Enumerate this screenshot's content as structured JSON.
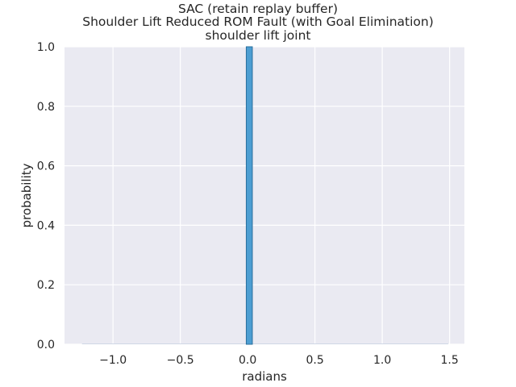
{
  "chart_data": {
    "type": "bar",
    "title_lines": [
      "SAC (retain replay buffer)",
      "Shoulder Lift Reduced ROM Fault (with Goal Elimination)",
      "shoulder lift joint"
    ],
    "xlabel": "radians",
    "ylabel": "probability",
    "xlim": [
      -1.36,
      1.61
    ],
    "ylim": [
      0.0,
      1.0
    ],
    "x_ticks": [
      -1.0,
      -0.5,
      0.0,
      0.5,
      1.0,
      1.5
    ],
    "x_tick_labels": [
      "−1.0",
      "−0.5",
      "0.0",
      "0.5",
      "1.0",
      "1.5"
    ],
    "y_ticks": [
      0.0,
      0.2,
      0.4,
      0.6,
      0.8,
      1.0
    ],
    "y_tick_labels": [
      "0.0",
      "0.2",
      "0.4",
      "0.6",
      "0.8",
      "1.0"
    ],
    "baseline_range": [
      -1.23,
      1.49
    ],
    "bins": [
      {
        "x_start": -0.01,
        "x_end": 0.035,
        "value": 1.0
      }
    ],
    "bar_color": "#4c9ed2",
    "bar_edge_color": "#2a6f9e",
    "plot_background": "#eaeaf2",
    "grid_color": "#ffffff"
  }
}
